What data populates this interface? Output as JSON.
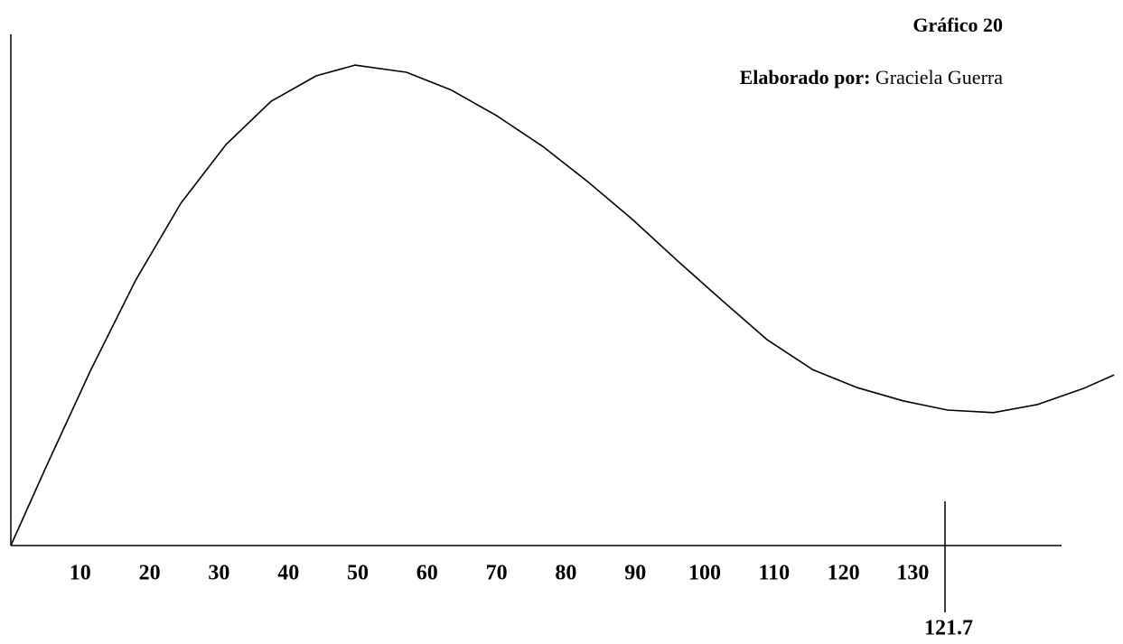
{
  "chart_data": {
    "type": "line",
    "title": "Gráfico 20",
    "credit_label": "Elaborado por:",
    "credit_name": "Graciela Guerra",
    "annotation": "121.7",
    "x": [
      0,
      4.9,
      11.5,
      18,
      24.5,
      31,
      37.5,
      44,
      49.6,
      57,
      63.5,
      70,
      76.6,
      83,
      89.6,
      96,
      102.6,
      109,
      115.6,
      122,
      128.6,
      135,
      141.6,
      148,
      154.7,
      159
    ],
    "values": [
      0,
      14.9,
      34.4,
      52.1,
      67.2,
      78.7,
      87.2,
      92.2,
      94.3,
      92.9,
      89.4,
      84.4,
      78.4,
      71.6,
      64,
      56,
      48,
      40.4,
      34.5,
      31,
      28.4,
      26.6,
      26.1,
      27.7,
      30.9,
      33.5
    ],
    "color": "#000000",
    "xlim": [
      0,
      151.3
    ],
    "ylim": [
      0,
      100
    ],
    "xticks": [
      10,
      20,
      30,
      40,
      50,
      60,
      70,
      80,
      90,
      100,
      110,
      120,
      130
    ],
    "grid": false
  }
}
